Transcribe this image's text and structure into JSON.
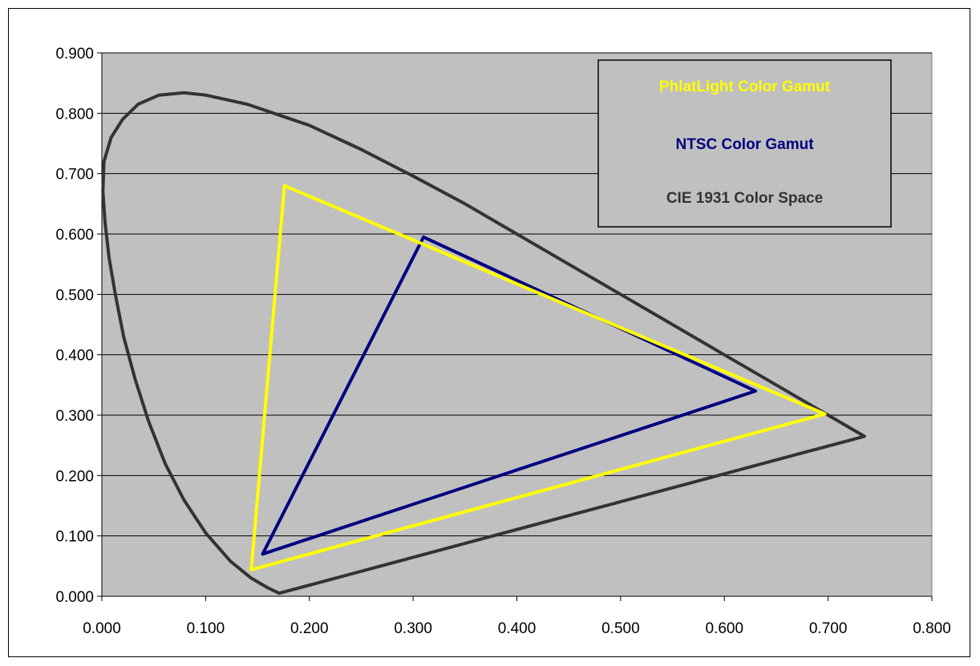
{
  "chart_data": {
    "type": "line",
    "title": "",
    "xlabel": "",
    "ylabel": "",
    "xlim": [
      0.0,
      0.8
    ],
    "ylim": [
      0.0,
      0.9
    ],
    "x_ticks": [
      "0.000",
      "0.100",
      "0.200",
      "0.300",
      "0.400",
      "0.500",
      "0.600",
      "0.700",
      "0.800"
    ],
    "y_ticks": [
      "0.000",
      "0.100",
      "0.200",
      "0.300",
      "0.400",
      "0.500",
      "0.600",
      "0.700",
      "0.800",
      "0.900"
    ],
    "grid": "horizontal",
    "legend_position": "top-right",
    "plot_background": "#c0c0c0",
    "series": [
      {
        "name": "CIE 1931 Color Space",
        "color": "#333333",
        "x": [
          0.171,
          0.16,
          0.144,
          0.124,
          0.1,
          0.079,
          0.061,
          0.045,
          0.032,
          0.021,
          0.013,
          0.007,
          0.003,
          0.001,
          0.002,
          0.009,
          0.02,
          0.035,
          0.055,
          0.079,
          0.1,
          0.14,
          0.2,
          0.25,
          0.3,
          0.35,
          0.4,
          0.45,
          0.5,
          0.55,
          0.6,
          0.65,
          0.7,
          0.735,
          0.171
        ],
        "y": [
          0.005,
          0.014,
          0.03,
          0.058,
          0.105,
          0.16,
          0.22,
          0.29,
          0.36,
          0.43,
          0.5,
          0.56,
          0.62,
          0.67,
          0.72,
          0.76,
          0.79,
          0.815,
          0.83,
          0.834,
          0.83,
          0.815,
          0.78,
          0.74,
          0.696,
          0.65,
          0.6,
          0.55,
          0.5,
          0.45,
          0.4,
          0.35,
          0.3,
          0.265,
          0.005
        ]
      },
      {
        "name": "NTSC Color Gamut",
        "color": "#000080",
        "x": [
          0.31,
          0.63,
          0.155,
          0.31
        ],
        "y": [
          0.595,
          0.34,
          0.07,
          0.595
        ]
      },
      {
        "name": "PhlatLight Color Gamut",
        "color": "#ffff00",
        "x": [
          0.176,
          0.697,
          0.144,
          0.176
        ],
        "y": [
          0.68,
          0.302,
          0.044,
          0.68
        ]
      }
    ],
    "legend": [
      {
        "label": "PhlatLight Color Gamut",
        "color": "#ffff00"
      },
      {
        "label": "NTSC Color Gamut",
        "color": "#000080"
      },
      {
        "label": "CIE 1931 Color Space",
        "color": "#333333"
      }
    ]
  }
}
